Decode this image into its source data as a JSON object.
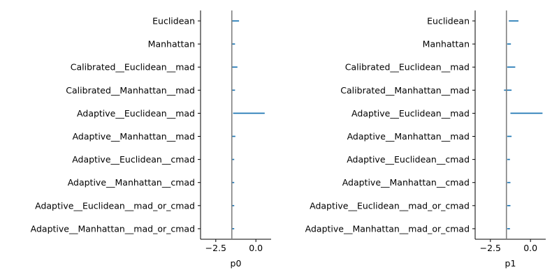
{
  "chart_data": [
    {
      "type": "interval",
      "xlabel": "p0",
      "xlim": [
        -3.45,
        0.95
      ],
      "xticks": [
        -2.5,
        0.0
      ],
      "xtick_labels": [
        "−2.5",
        "0.0"
      ],
      "reference_line": -1.5,
      "categories": [
        "Euclidean",
        "Manhattan",
        "Calibrated__Euclidean__mad",
        "Calibrated__Manhattan__mad",
        "Adaptive__Euclidean__mad",
        "Adaptive__Manhattan__mad",
        "Adaptive__Euclidean__cmad",
        "Adaptive__Manhattan__cmad",
        "Adaptive__Euclidean__mad_or_cmad",
        "Adaptive__Manhattan__mad_or_cmad"
      ],
      "intervals": [
        [
          -1.5,
          -1.05
        ],
        [
          -1.5,
          -1.3
        ],
        [
          -1.5,
          -1.15
        ],
        [
          -1.48,
          -1.3
        ],
        [
          -1.42,
          0.55
        ],
        [
          -1.47,
          -1.28
        ],
        [
          -1.48,
          -1.35
        ],
        [
          -1.48,
          -1.35
        ],
        [
          -1.48,
          -1.35
        ],
        [
          -1.48,
          -1.35
        ]
      ],
      "color": "#1f77b4",
      "grid": false
    },
    {
      "type": "interval",
      "xlabel": "p1",
      "xlim": [
        -3.45,
        0.95
      ],
      "xticks": [
        -2.5,
        0.0
      ],
      "xtick_labels": [
        "−2.5",
        "0.0"
      ],
      "reference_line": -1.5,
      "categories": [
        "Euclidean",
        "Manhattan",
        "Calibrated__Euclidean__mad",
        "Calibrated__Manhattan__mad",
        "Adaptive__Euclidean__mad",
        "Adaptive__Manhattan__mad",
        "Adaptive__Euclidean__cmad",
        "Adaptive__Manhattan__cmad",
        "Adaptive__Euclidean__mad_or_cmad",
        "Adaptive__Manhattan__mad_or_cmad"
      ],
      "intervals": [
        [
          -1.35,
          -0.75
        ],
        [
          -1.45,
          -1.22
        ],
        [
          -1.45,
          -0.95
        ],
        [
          -1.65,
          -1.18
        ],
        [
          -1.25,
          0.75
        ],
        [
          -1.45,
          -1.18
        ],
        [
          -1.45,
          -1.28
        ],
        [
          -1.45,
          -1.25
        ],
        [
          -1.45,
          -1.25
        ],
        [
          -1.45,
          -1.28
        ]
      ],
      "color": "#1f77b4",
      "grid": false
    }
  ]
}
